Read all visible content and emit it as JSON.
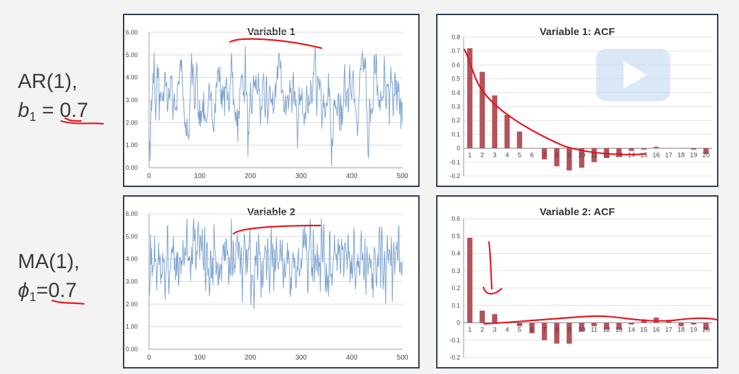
{
  "labels": {
    "row1": {
      "model": "AR(1),",
      "param_symbol": "b",
      "param_sub": "1",
      "param_eq": " = ",
      "param_value": "0.7"
    },
    "row2": {
      "model": "MA(1),",
      "param_symbol": "ϕ",
      "param_sub": "1",
      "param_eq": "=",
      "param_value": "0.7"
    }
  },
  "annotation_color": "#e8141c",
  "chart_data": [
    {
      "id": "var1-series",
      "type": "line",
      "title": "Variable 1",
      "color": "#7ea3cf",
      "xlim": [
        0,
        500
      ],
      "ylim": [
        0,
        6
      ],
      "xticks": [
        "0",
        "100",
        "200",
        "300",
        "400",
        "500"
      ],
      "yticks": [
        "0.00",
        "1.00",
        "2.00",
        "3.00",
        "4.00",
        "5.00",
        "6.00"
      ],
      "n_points": 500,
      "mean": 3.2,
      "noise": "AR(1) b1=0.7",
      "x_sample": [
        1,
        2,
        3,
        5,
        8,
        10,
        15,
        20,
        50,
        100,
        150,
        190,
        200,
        250,
        300,
        350,
        400,
        450,
        480,
        500
      ],
      "y_sample": [
        1.2,
        0.3,
        1.5,
        2.5,
        4.2,
        5.1,
        3.2,
        2.1,
        3.3,
        3.0,
        3.6,
        5.4,
        3.8,
        3.1,
        3.0,
        2.9,
        3.0,
        3.2,
        3.8,
        2.0
      ]
    },
    {
      "id": "var1-acf",
      "type": "bar",
      "title": "Variable 1: ACF",
      "color": "#b5525a",
      "categories": [
        "1",
        "2",
        "3",
        "4",
        "5",
        "6",
        "7",
        "8",
        "9",
        "10",
        "11",
        "12",
        "13",
        "14",
        "15",
        "16",
        "17",
        "18",
        "19",
        "20"
      ],
      "values": [
        0.72,
        0.55,
        0.38,
        0.24,
        0.12,
        0.0,
        -0.08,
        -0.13,
        -0.16,
        -0.14,
        -0.1,
        -0.07,
        -0.06,
        -0.02,
        -0.01,
        0.01,
        0.0,
        0.0,
        -0.01,
        -0.04
      ],
      "ylim": [
        -0.2,
        0.8
      ],
      "yticks": [
        "0.8",
        "0.7",
        "0.6",
        "0.5",
        "0.4",
        "0.3",
        "0.2",
        "0.1",
        "0",
        "-0.1",
        "-0.2"
      ]
    },
    {
      "id": "var2-series",
      "type": "line",
      "title": "Variable 2",
      "color": "#7ea3cf",
      "xlim": [
        0,
        500
      ],
      "ylim": [
        0,
        6
      ],
      "xticks": [
        "0",
        "100",
        "200",
        "300",
        "400",
        "500"
      ],
      "yticks": [
        "0.00",
        "1.00",
        "2.00",
        "3.00",
        "4.00",
        "5.00",
        "6.00"
      ],
      "n_points": 500,
      "mean": 3.9,
      "noise": "MA(1) phi1=0.7",
      "x_sample": [
        1,
        2,
        3,
        5,
        10,
        50,
        100,
        150,
        200,
        250,
        300,
        350,
        400,
        450,
        480,
        500
      ],
      "y_sample": [
        2.4,
        3.0,
        5.1,
        4.5,
        3.8,
        3.5,
        4.0,
        3.9,
        4.1,
        3.6,
        4.0,
        3.8,
        4.2,
        3.7,
        2.1,
        3.9
      ]
    },
    {
      "id": "var2-acf",
      "type": "bar",
      "title": "Variable 2: ACF",
      "color": "#b5525a",
      "categories": [
        "1",
        "2",
        "3",
        "4",
        "5",
        "6",
        "7",
        "8",
        "9",
        "10",
        "11",
        "12",
        "13",
        "14",
        "15",
        "16",
        "17",
        "18",
        "19",
        "20"
      ],
      "values": [
        0.49,
        0.07,
        0.05,
        0.0,
        -0.02,
        -0.06,
        -0.1,
        -0.12,
        -0.12,
        -0.05,
        -0.02,
        -0.04,
        -0.04,
        -0.01,
        0.02,
        0.03,
        0.01,
        -0.02,
        -0.01,
        -0.04
      ],
      "ylim": [
        -0.2,
        0.6
      ],
      "yticks": [
        "0.6",
        "0.5",
        "0.4",
        "0.3",
        "0.2",
        "0.1",
        "0",
        "-0.1",
        "-0.2"
      ]
    }
  ]
}
